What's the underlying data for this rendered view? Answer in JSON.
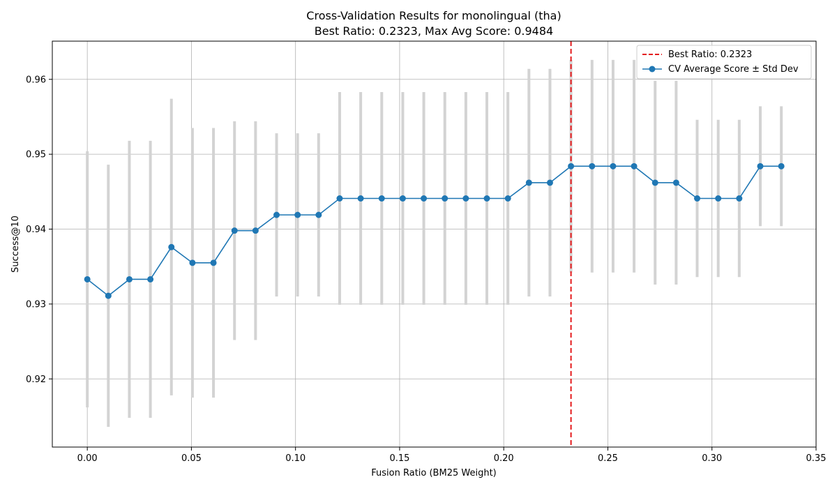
{
  "chart_data": {
    "type": "line",
    "title": "Cross-Validation Results for monolingual (tha)",
    "subtitle": "Best Ratio: 0.2323, Max Avg Score: 0.9484",
    "xlabel": "Fusion Ratio (BM25 Weight)",
    "ylabel": "Success@10",
    "xlim": [
      -0.0168,
      0.35
    ],
    "ylim": [
      0.9109,
      0.9651
    ],
    "xticks": [
      0.0,
      0.05,
      0.1,
      0.15,
      0.2,
      0.25,
      0.3,
      0.35
    ],
    "xtick_labels": [
      "0.00",
      "0.05",
      "0.10",
      "0.15",
      "0.20",
      "0.25",
      "0.30",
      "0.35"
    ],
    "yticks": [
      0.92,
      0.93,
      0.94,
      0.95,
      0.96
    ],
    "ytick_labels": [
      "0.92",
      "0.93",
      "0.94",
      "0.95",
      "0.96"
    ],
    "grid": true,
    "legend_position": "top-right",
    "best_ratio": {
      "value": 0.2323,
      "label": "Best Ratio: 0.2323",
      "color": "#e41a1c",
      "style": "dashed"
    },
    "series": [
      {
        "name": "CV Average Score ± Std Dev",
        "color": "#1f77b4",
        "error_color": "#d3d3d3",
        "x": [
          0.0,
          0.0101,
          0.0202,
          0.0303,
          0.0404,
          0.0505,
          0.0606,
          0.0707,
          0.0808,
          0.0909,
          0.101,
          0.1111,
          0.1212,
          0.1313,
          0.1414,
          0.1515,
          0.1616,
          0.1717,
          0.1818,
          0.1919,
          0.202,
          0.2121,
          0.2222,
          0.2323,
          0.2424,
          0.2525,
          0.2626,
          0.2727,
          0.2828,
          0.2929,
          0.303,
          0.3131,
          0.3232,
          0.3333
        ],
        "y": [
          0.9333,
          0.9311,
          0.9333,
          0.9333,
          0.9376,
          0.9355,
          0.9355,
          0.9398,
          0.9398,
          0.9419,
          0.9419,
          0.9419,
          0.9441,
          0.9441,
          0.9441,
          0.9441,
          0.9441,
          0.9441,
          0.9441,
          0.9441,
          0.9441,
          0.9462,
          0.9462,
          0.9484,
          0.9484,
          0.9484,
          0.9484,
          0.9462,
          0.9462,
          0.9441,
          0.9441,
          0.9441,
          0.9484,
          0.9484
        ],
        "std": [
          0.0171,
          0.0175,
          0.0185,
          0.0185,
          0.0198,
          0.018,
          0.018,
          0.0146,
          0.0146,
          0.0109,
          0.0109,
          0.0109,
          0.0142,
          0.0142,
          0.0142,
          0.0142,
          0.0142,
          0.0142,
          0.0142,
          0.0142,
          0.0142,
          0.0152,
          0.0152,
          0.0142,
          0.0142,
          0.0142,
          0.0142,
          0.0136,
          0.0136,
          0.0105,
          0.0105,
          0.0105,
          0.008,
          0.008
        ]
      }
    ]
  }
}
